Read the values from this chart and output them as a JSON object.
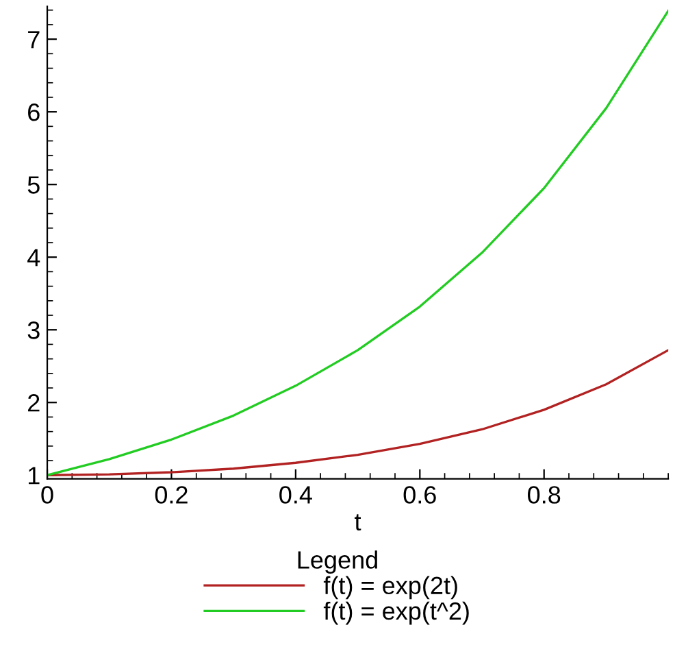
{
  "chart_data": {
    "type": "line",
    "xlabel": "t",
    "legend_title": "Legend",
    "legend": "bottom",
    "grid": false,
    "marker": "none",
    "line_style": "solid",
    "x": [
      0,
      0.1,
      0.2,
      0.3,
      0.4,
      0.5,
      0.6,
      0.7,
      0.8,
      0.9,
      1.0
    ],
    "series": [
      {
        "name": "f(t) = exp(2t)",
        "color": "#b22222",
        "values": [
          1,
          1.01,
          1.04,
          1.09,
          1.17,
          1.28,
          1.43,
          1.63,
          1.9,
          2.25,
          2.72
        ]
      },
      {
        "name": "f(t) = exp(t^2)",
        "color": "#22cc22",
        "values": [
          1,
          1.22,
          1.49,
          1.82,
          2.23,
          2.72,
          3.32,
          4.06,
          4.95,
          6.05,
          7.39
        ]
      }
    ],
    "xlim": [
      0,
      1
    ],
    "ylim": [
      0.95,
      7.45
    ],
    "xticks": [
      0,
      0.2,
      0.4,
      0.6,
      0.8
    ],
    "yticks": [
      1,
      2,
      3,
      4,
      5,
      6,
      7
    ]
  }
}
